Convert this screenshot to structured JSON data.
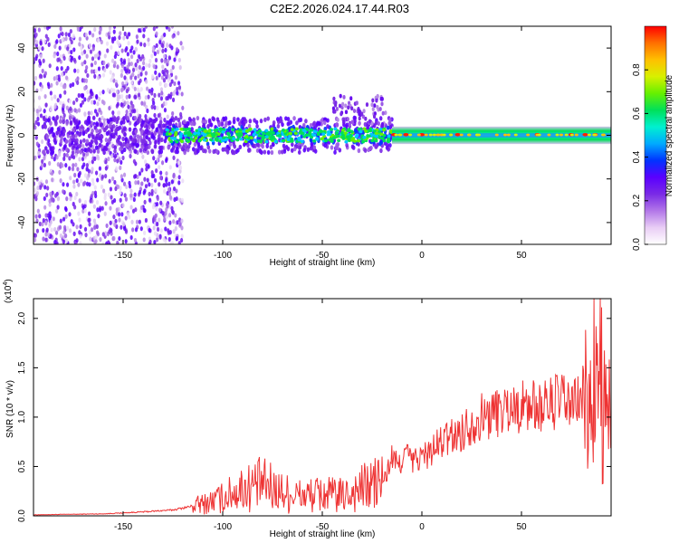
{
  "title": "C2E2.2026.024.17.44.R03",
  "colors": {
    "snr_line": "#ee3333",
    "frame": "#000000",
    "colorbar": [
      "#ffffff",
      "#e9cdf5",
      "#b277e8",
      "#7a2ae6",
      "#5a00ff",
      "#0033ff",
      "#00aaff",
      "#00f0d0",
      "#00e05a",
      "#66f000",
      "#d8f000",
      "#ffc000",
      "#ff7000",
      "#ff0000"
    ]
  },
  "chart_data": [
    {
      "type": "heatmap",
      "xlabel": "Height of straight line (km)",
      "ylabel": "Frequency (Hz)",
      "xlim": [
        -195,
        95
      ],
      "ylim": [
        -50,
        50
      ],
      "xticks": [
        -150,
        -100,
        -50,
        0,
        50
      ],
      "yticks": [
        -40,
        -20,
        0,
        20,
        40
      ],
      "colorbar": {
        "label": "Normalized spectral amplitude",
        "range": [
          0,
          1
        ],
        "ticks": [
          "0.0",
          "0.2",
          "0.4",
          "0.6",
          "0.8"
        ]
      }
    },
    {
      "type": "line",
      "xlabel": "Height of straight line (km)",
      "ylabel": "SNR (10 * v/v)",
      "y_multiplier": "(x10^4)",
      "xlim": [
        -195,
        95
      ],
      "ylim": [
        0,
        22000
      ],
      "xticks": [
        -150,
        -100,
        -50,
        0,
        50
      ],
      "yticks": [
        "0.0",
        "0.5",
        "1.0",
        "1.5",
        "2.0"
      ],
      "series": [
        {
          "x": [
            -195,
            -180,
            -160,
            -140,
            -125,
            -115,
            -110,
            -100,
            -90,
            -80,
            -70,
            -60,
            -50,
            -40,
            -30,
            -20,
            -18,
            -15,
            -12,
            -8,
            -5,
            0,
            5,
            10,
            15,
            20,
            25,
            30,
            35,
            40,
            45,
            50,
            55,
            60,
            65,
            70,
            75,
            80,
            84,
            86,
            88,
            90,
            91,
            92,
            93,
            95
          ],
          "y": [
            100,
            150,
            200,
            400,
            600,
            1000,
            1200,
            1800,
            2800,
            3200,
            2400,
            2000,
            2200,
            2000,
            2800,
            3500,
            4000,
            6000,
            5000,
            6500,
            5500,
            6000,
            6500,
            7500,
            8000,
            8500,
            9500,
            10000,
            10300,
            10800,
            11000,
            11000,
            11200,
            11000,
            11400,
            11800,
            11000,
            12000,
            10500,
            14000,
            12000,
            16000,
            6000,
            13000,
            8000,
            10500
          ]
        }
      ]
    }
  ]
}
